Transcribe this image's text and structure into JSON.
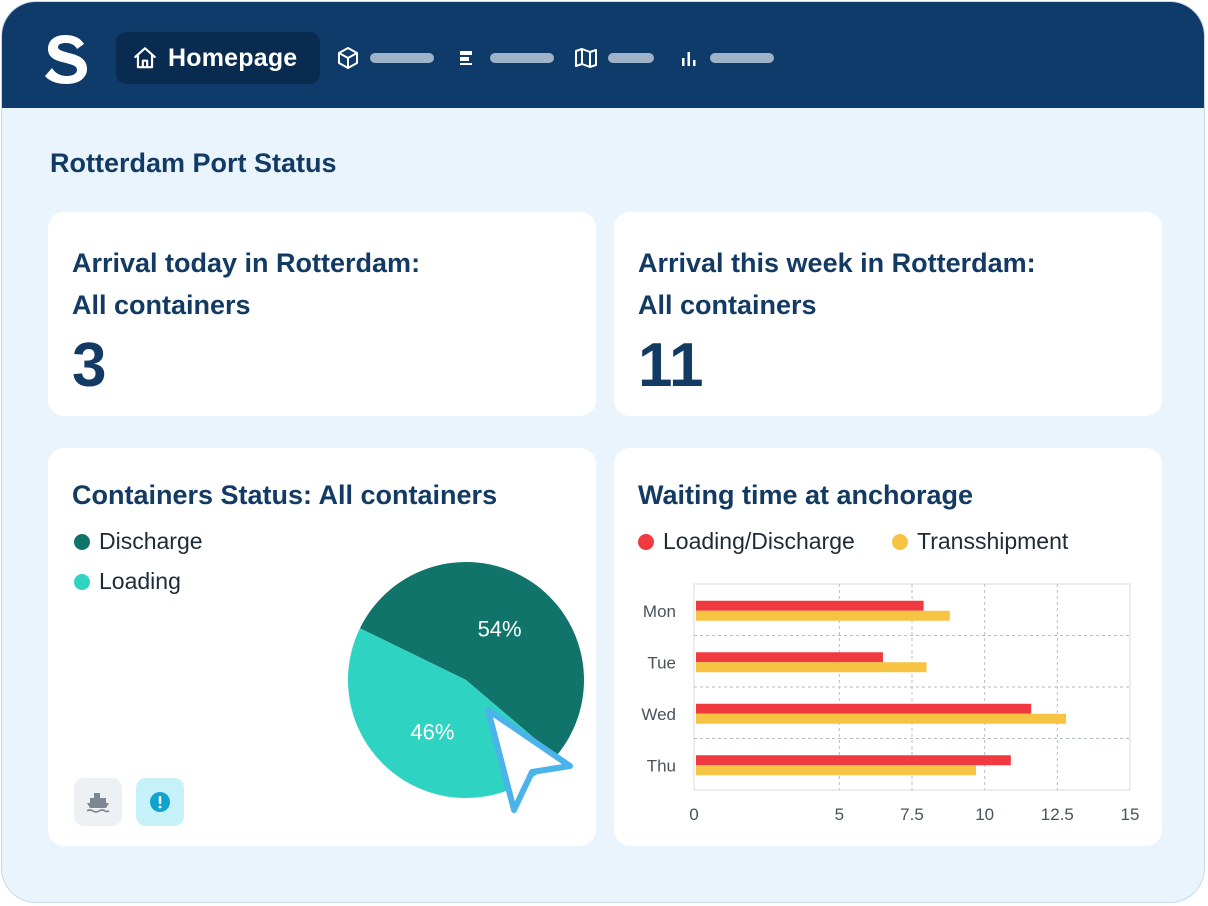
{
  "nav": {
    "home_label": "Homepage",
    "items": [
      {
        "icon": "box-icon"
      },
      {
        "icon": "list-icon"
      },
      {
        "icon": "map-icon"
      },
      {
        "icon": "bar-chart-icon"
      }
    ]
  },
  "page": {
    "title": "Rotterdam Port Status"
  },
  "cards": {
    "today": {
      "title_line1": "Arrival today in Rotterdam:",
      "title_line2": "All containers",
      "value": "3"
    },
    "week": {
      "title_line1": "Arrival this week in Rotterdam:",
      "title_line2": "All containers",
      "value": "11"
    },
    "status": {
      "title": "Containers Status: All containers",
      "chips": [
        {
          "icon": "ship-icon"
        },
        {
          "icon": "alert-icon"
        }
      ]
    },
    "waiting": {
      "title": "Waiting time at anchorage"
    }
  },
  "colors": {
    "navy": "#0f3b6b",
    "discharge": "#11746a",
    "loading": "#2fd3c1",
    "loading_discharge": "#f03a3f",
    "transshipment": "#f6c343"
  },
  "chart_data": [
    {
      "type": "pie",
      "title": "Containers Status: All containers",
      "labels": [
        "Discharge",
        "Loading"
      ],
      "values": [
        54,
        46
      ],
      "value_labels": [
        "54%",
        "46%"
      ],
      "colors": [
        "#11746a",
        "#2fd3c1"
      ],
      "legend": "top-left"
    },
    {
      "type": "bar",
      "orientation": "horizontal",
      "title": "Waiting time at anchorage",
      "categories": [
        "Mon",
        "Tue",
        "Wed",
        "Thu"
      ],
      "series": [
        {
          "name": "Loading/Discharge",
          "color": "#f03a3f",
          "values": [
            7.9,
            6.5,
            11.6,
            10.9
          ]
        },
        {
          "name": "Transshipment",
          "color": "#f6c343",
          "values": [
            8.8,
            8.0,
            12.8,
            9.7
          ]
        }
      ],
      "xlim": [
        0,
        15
      ],
      "xticks": [
        "0",
        "5",
        "7.5",
        "10",
        "12.5",
        "15"
      ],
      "grid": true,
      "legend": "top-left"
    }
  ]
}
